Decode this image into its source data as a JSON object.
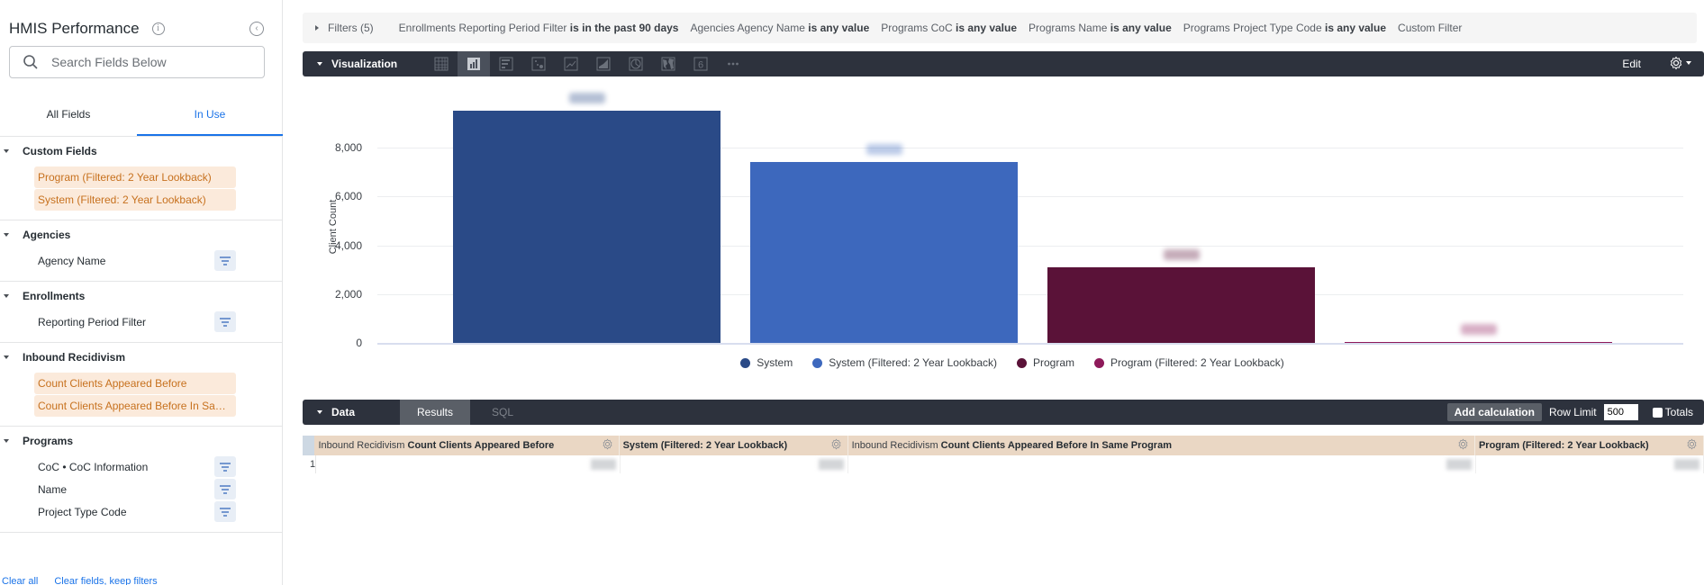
{
  "sidebar": {
    "title": "HMIS Performance",
    "search_placeholder": "Search Fields Below",
    "tabs": [
      {
        "label": "All Fields",
        "active": false
      },
      {
        "label": "In Use",
        "active": true
      }
    ],
    "groups": [
      {
        "title": "Custom Fields",
        "fields": [
          {
            "label": "Program (Filtered: 2 Year Lookback)",
            "in_use": true,
            "filter": false
          },
          {
            "label": "System (Filtered: 2 Year Lookback)",
            "in_use": true,
            "filter": false
          }
        ]
      },
      {
        "title": "Agencies",
        "fields": [
          {
            "label": "Agency Name",
            "in_use": false,
            "filter": true
          }
        ]
      },
      {
        "title": "Enrollments",
        "fields": [
          {
            "label": "Reporting Period Filter",
            "in_use": false,
            "filter": true
          }
        ]
      },
      {
        "title": "Inbound Recidivism",
        "fields": [
          {
            "label": "Count Clients Appeared Before",
            "in_use": true,
            "filter": false
          },
          {
            "label": "Count Clients Appeared Before In Sam...",
            "in_use": true,
            "filter": false
          }
        ]
      },
      {
        "title": "Programs",
        "fields": [
          {
            "label": "CoC • CoC Information",
            "in_use": false,
            "filter": true
          },
          {
            "label": "Name",
            "in_use": false,
            "filter": true
          },
          {
            "label": "Project Type Code",
            "in_use": false,
            "filter": true
          }
        ]
      }
    ],
    "footer": {
      "clear_all": "Clear all",
      "clear_fields": "Clear fields, keep filters"
    }
  },
  "filters": {
    "title": "Filters (5)",
    "items": [
      {
        "field": "Enrollments Reporting Period Filter",
        "op": "is in the past 90 days"
      },
      {
        "field": "Agencies Agency Name",
        "op": "is any value"
      },
      {
        "field": "Programs CoC",
        "op": "is any value"
      },
      {
        "field": "Programs Name",
        "op": "is any value"
      },
      {
        "field": "Programs Project Type Code",
        "op": "is any value"
      },
      {
        "field": "Custom Filter",
        "op": ""
      }
    ]
  },
  "visualization": {
    "title": "Visualization",
    "icons": [
      "table-icon",
      "column-chart-icon",
      "bar-chart-icon",
      "scatter-icon",
      "line-chart-icon",
      "area-chart-icon",
      "pie-chart-icon",
      "map-icon",
      "single-value-icon",
      "more-icon"
    ],
    "active_icon": "column-chart-icon",
    "edit_label": "Edit"
  },
  "chart_data": {
    "type": "bar",
    "title": "",
    "xlabel": "",
    "ylabel": "Client Count",
    "ylim": [
      0,
      9800
    ],
    "yticks": [
      "0",
      "2,000",
      "4,000",
      "6,000",
      "8,000"
    ],
    "grid": true,
    "legend_position": "bottom",
    "categories": [
      "System",
      "System (Filtered: 2 Year Lookback)",
      "Program",
      "Program (Filtered: 2 Year Lookback)"
    ],
    "values": [
      9500,
      7400,
      3100,
      50
    ],
    "colors": [
      "#2a4a87",
      "#3d68bd",
      "#5a1238",
      "#8e1a5a"
    ],
    "data_labels_obscured": true
  },
  "data_panel": {
    "title": "Data",
    "tabs": [
      {
        "label": "Results",
        "active": true
      },
      {
        "label": "SQL",
        "active": false
      }
    ],
    "add_calc": "Add calculation",
    "row_limit_label": "Row Limit",
    "row_limit": "500",
    "totals_label": "Totals",
    "columns": [
      {
        "prefix": "Inbound Recidivism",
        "name": "Count Clients Appeared Before"
      },
      {
        "prefix": "",
        "name": "System (Filtered: 2 Year Lookback)"
      },
      {
        "prefix": "Inbound Recidivism",
        "name": "Count Clients Appeared Before In Same Program"
      },
      {
        "prefix": "",
        "name": "Program (Filtered: 2 Year Lookback)"
      }
    ],
    "rows": [
      {
        "num": "1"
      }
    ]
  }
}
